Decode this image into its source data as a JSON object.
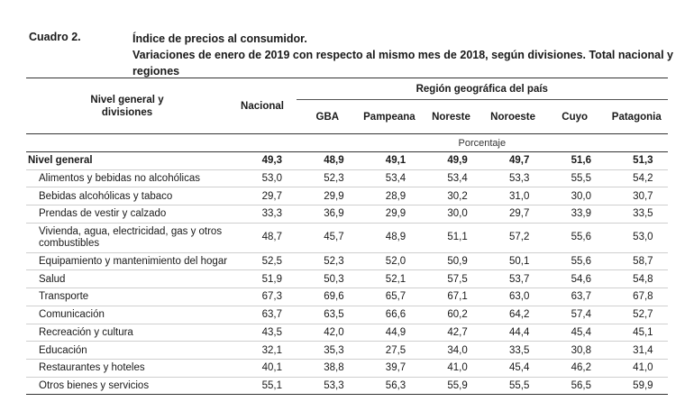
{
  "caption": {
    "label": "Cuadro 2.",
    "title_line1": "Índice de precios al consumidor.",
    "title_line2": "Variaciones de enero de 2019 con respecto al mismo mes de 2018, según divisiones. Total nacional y regiones"
  },
  "header": {
    "level_line1": "Nivel general y",
    "level_line2": "divisiones",
    "nacional": "Nacional",
    "region_group": "Región geográfica del país",
    "regions": [
      "GBA",
      "Pampeana",
      "Noreste",
      "Noroeste",
      "Cuyo",
      "Patagonia"
    ],
    "unit": "Porcentaje"
  },
  "rows": [
    {
      "label": "Nivel general",
      "values": [
        "49,3",
        "48,9",
        "49,1",
        "49,9",
        "49,7",
        "51,6",
        "51,3"
      ]
    },
    {
      "label": "Alimentos y bebidas no alcohólicas",
      "values": [
        "53,0",
        "52,3",
        "53,4",
        "53,4",
        "53,3",
        "55,5",
        "54,2"
      ]
    },
    {
      "label": "Bebidas alcohólicas y tabaco",
      "values": [
        "29,7",
        "29,9",
        "28,9",
        "30,2",
        "31,0",
        "30,0",
        "30,7"
      ]
    },
    {
      "label": "Prendas de vestir y calzado",
      "values": [
        "33,3",
        "36,9",
        "29,9",
        "30,0",
        "29,7",
        "33,9",
        "33,5"
      ]
    },
    {
      "label": "Vivienda, agua, electricidad, gas y otros combustibles",
      "values": [
        "48,7",
        "45,7",
        "48,9",
        "51,1",
        "57,2",
        "55,6",
        "53,0"
      ]
    },
    {
      "label": "Equipamiento y mantenimiento del hogar",
      "values": [
        "52,5",
        "52,3",
        "52,0",
        "50,9",
        "50,1",
        "55,6",
        "58,7"
      ]
    },
    {
      "label": "Salud",
      "values": [
        "51,9",
        "50,3",
        "52,1",
        "57,5",
        "53,7",
        "54,6",
        "54,8"
      ]
    },
    {
      "label": "Transporte",
      "values": [
        "67,3",
        "69,6",
        "65,7",
        "67,1",
        "63,0",
        "63,7",
        "67,8"
      ]
    },
    {
      "label": "Comunicación",
      "values": [
        "63,7",
        "63,5",
        "66,6",
        "60,2",
        "64,2",
        "57,4",
        "52,7"
      ]
    },
    {
      "label": "Recreación y cultura",
      "values": [
        "43,5",
        "42,0",
        "44,9",
        "42,7",
        "44,4",
        "45,4",
        "45,1"
      ]
    },
    {
      "label": "Educación",
      "values": [
        "32,1",
        "35,3",
        "27,5",
        "34,0",
        "33,5",
        "30,8",
        "31,4"
      ]
    },
    {
      "label": "Restaurantes y hoteles",
      "values": [
        "40,1",
        "38,8",
        "39,7",
        "41,0",
        "45,4",
        "46,2",
        "41,0"
      ]
    },
    {
      "label": "Otros bienes y servicios",
      "values": [
        "55,1",
        "53,3",
        "56,3",
        "55,9",
        "55,5",
        "56,5",
        "59,9"
      ]
    }
  ]
}
